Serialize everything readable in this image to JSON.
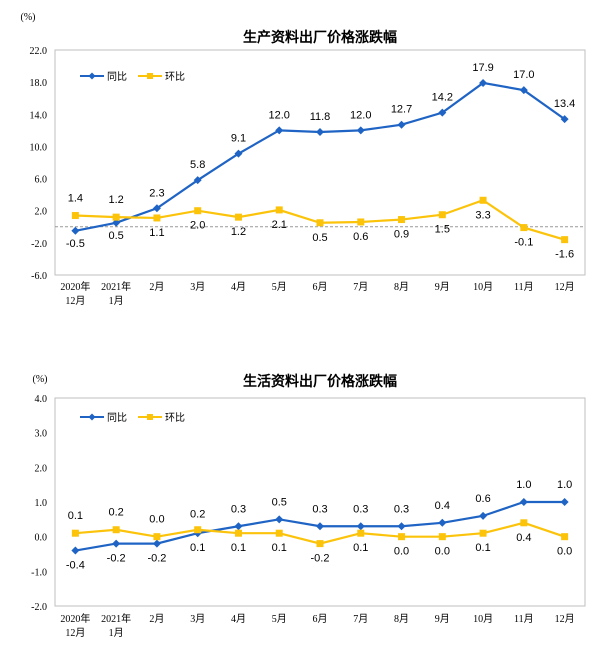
{
  "chart_data": [
    {
      "type": "line",
      "title": "生产资料出厂价格涨跌幅",
      "unit": "(%)",
      "categories": [
        [
          "2020年",
          "12月"
        ],
        [
          "2021年",
          "1月"
        ],
        [
          "2月"
        ],
        [
          "3月"
        ],
        [
          "4月"
        ],
        [
          "5月"
        ],
        [
          "6月"
        ],
        [
          "7月"
        ],
        [
          "8月"
        ],
        [
          "9月"
        ],
        [
          "10月"
        ],
        [
          "11月"
        ],
        [
          "12月"
        ]
      ],
      "ylim": [
        -6.0,
        22.0
      ],
      "yticks": [
        "22.0",
        "18.0",
        "14.0",
        "10.0",
        "6.0",
        "2.0",
        "-2.0",
        "-6.0"
      ],
      "grid": false,
      "legend_position": "top-left",
      "series": [
        {
          "name": "同比",
          "color": "#1F64C4",
          "values": [
            -0.5,
            0.5,
            2.3,
            5.8,
            9.1,
            12.0,
            11.8,
            12.0,
            12.7,
            14.2,
            17.9,
            17.0,
            13.4
          ],
          "labels": [
            "-0.5",
            "0.5",
            "2.3",
            "5.8",
            "9.1",
            "12.0",
            "11.8",
            "12.0",
            "12.7",
            "14.2",
            "17.9",
            "17.0",
            "13.4"
          ]
        },
        {
          "name": "环比",
          "color": "#FBC30A",
          "values": [
            1.4,
            1.2,
            1.1,
            2.0,
            1.2,
            2.1,
            0.5,
            0.6,
            0.9,
            1.5,
            3.3,
            -0.1,
            -1.6
          ],
          "labels": [
            "1.4",
            "1.2",
            "1.1",
            "2.0",
            "1.2",
            "2.1",
            "0.5",
            "0.6",
            "0.9",
            "1.5",
            "3.3",
            "-0.1",
            "-1.6"
          ]
        }
      ]
    },
    {
      "type": "line",
      "title": "生活资料出厂价格涨跌幅",
      "unit": "(%)",
      "categories": [
        [
          "2020年",
          "12月"
        ],
        [
          "2021年",
          "1月"
        ],
        [
          "2月"
        ],
        [
          "3月"
        ],
        [
          "4月"
        ],
        [
          "5月"
        ],
        [
          "6月"
        ],
        [
          "7月"
        ],
        [
          "8月"
        ],
        [
          "9月"
        ],
        [
          "10月"
        ],
        [
          "11月"
        ],
        [
          "12月"
        ]
      ],
      "ylim": [
        -2.0,
        4.0
      ],
      "yticks": [
        "4.0",
        "3.0",
        "2.0",
        "1.0",
        "0.0",
        "-1.0",
        "-2.0"
      ],
      "grid": false,
      "legend_position": "top-left",
      "series": [
        {
          "name": "同比",
          "color": "#1F64C4",
          "values": [
            -0.4,
            -0.2,
            -0.2,
            0.1,
            0.3,
            0.5,
            0.3,
            0.3,
            0.3,
            0.4,
            0.6,
            1.0,
            1.0
          ],
          "labels": [
            "-0.4",
            "-0.2",
            "-0.2",
            "0.1",
            "0.3",
            "0.5",
            "0.3",
            "0.3",
            "0.3",
            "0.4",
            "0.6",
            "1.0",
            "1.0"
          ]
        },
        {
          "name": "环比",
          "color": "#FBC30A",
          "values": [
            0.1,
            0.2,
            0.0,
            0.2,
            0.1,
            0.1,
            -0.2,
            0.1,
            0.0,
            0.0,
            0.1,
            0.4,
            0.0
          ],
          "labels": [
            "0.1",
            "0.2",
            "0.0",
            "0.2",
            "0.1",
            "0.1",
            "-0.2",
            "0.1",
            "0.0",
            "0.0",
            "0.1",
            "0.4",
            "0.0"
          ]
        }
      ]
    }
  ]
}
